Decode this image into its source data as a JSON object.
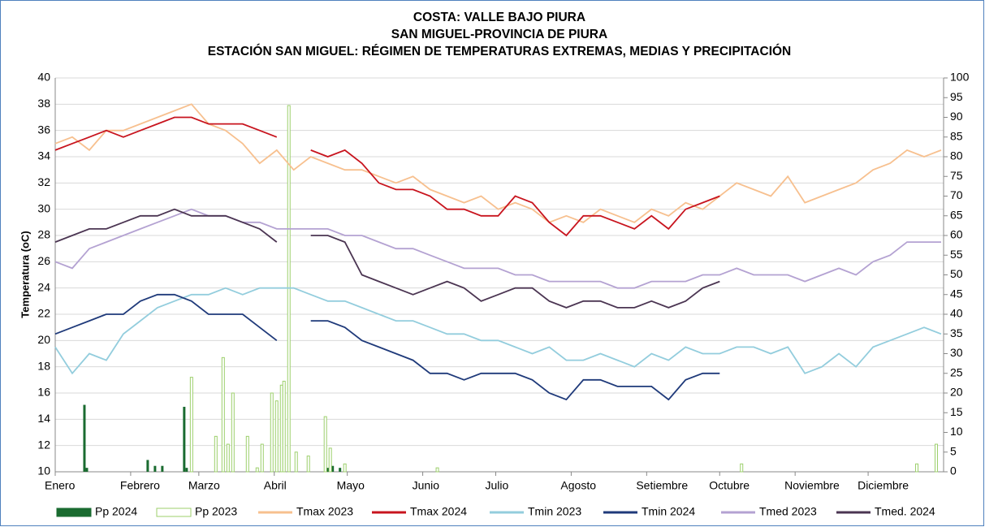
{
  "chart_data": {
    "type": "line",
    "title": [
      "COSTA: VALLE BAJO PIURA",
      "SAN MIGUEL-PROVINCIA DE PIURA",
      "ESTACIÓN SAN MIGUEL: RÉGIMEN DE TEMPERATURAS EXTREMAS, MEDIAS Y PRECIPITACIÓN"
    ],
    "y_label": "Temperatura (oC)",
    "x": [
      1,
      8,
      15,
      22,
      29,
      36,
      43,
      50,
      57,
      64,
      71,
      78,
      85,
      92,
      99,
      106,
      113,
      120,
      127,
      134,
      141,
      148,
      155,
      162,
      169,
      176,
      183,
      190,
      197,
      204,
      211,
      218,
      225,
      232,
      239,
      246,
      253,
      260,
      267,
      274,
      281,
      288,
      295,
      302,
      309,
      316,
      323,
      330,
      337,
      344,
      351,
      358,
      365
    ],
    "xlim": [
      1,
      366
    ],
    "xticks": [
      {
        "value": 1,
        "label": "Enero"
      },
      {
        "value": 32,
        "label": "Febrero"
      },
      {
        "value": 60,
        "label": "Marzo"
      },
      {
        "value": 91,
        "label": "Abril"
      },
      {
        "value": 121,
        "label": "Mayo"
      },
      {
        "value": 152,
        "label": "Junio"
      },
      {
        "value": 182,
        "label": "Julio"
      },
      {
        "value": 213,
        "label": "Agosto"
      },
      {
        "value": 244,
        "label": "Setiembre"
      },
      {
        "value": 274,
        "label": "Octubre"
      },
      {
        "value": 305,
        "label": "Noviembre"
      },
      {
        "value": 335,
        "label": "Diciembre"
      }
    ],
    "ylim": [
      10,
      40
    ],
    "yticks": [
      10,
      12,
      14,
      16,
      18,
      20,
      22,
      24,
      26,
      28,
      30,
      32,
      34,
      36,
      38,
      40
    ],
    "y2lim": [
      0,
      100
    ],
    "y2ticks": [
      0,
      5,
      10,
      15,
      20,
      25,
      30,
      35,
      40,
      45,
      50,
      55,
      60,
      65,
      70,
      75,
      80,
      85,
      90,
      95,
      100
    ],
    "grid": true,
    "legend": "bottom",
    "series": [
      {
        "name": "Pp 2024",
        "type": "bar",
        "axis": "y2",
        "color": "#1a6b30",
        "x": [
          13,
          14,
          39,
          42,
          45,
          54,
          55,
          113,
          115,
          118
        ],
        "values": [
          17,
          1,
          3,
          1.5,
          1.5,
          16.5,
          1,
          1,
          1.5,
          1
        ]
      },
      {
        "name": "Pp 2023",
        "type": "bar",
        "axis": "y2",
        "color": "#9ccf6b",
        "x": [
          57,
          67,
          70,
          72,
          74,
          80,
          84,
          86,
          90,
          92,
          94,
          95,
          97,
          100,
          105,
          112,
          114,
          120,
          158,
          283,
          355,
          363
        ],
        "values": [
          24,
          9,
          29,
          7,
          20,
          9,
          1,
          7,
          20,
          18,
          22,
          23,
          93,
          5,
          4,
          14,
          6,
          2,
          1,
          2,
          2,
          7
        ]
      },
      {
        "name": "Tmax 2023",
        "type": "line",
        "color": "#f7c08f",
        "values": [
          35,
          35.5,
          34.5,
          36,
          36,
          36.5,
          37,
          37.5,
          38,
          36.5,
          36,
          35,
          33.5,
          34.5,
          33,
          34,
          33.5,
          33,
          33,
          32.5,
          32,
          32.5,
          31.5,
          31,
          30.5,
          31,
          30,
          30.5,
          30,
          29,
          29.5,
          29,
          30,
          29.5,
          29,
          30,
          29.5,
          30.5,
          30,
          31,
          32,
          31.5,
          31,
          32.5,
          30.5,
          31,
          31.5,
          32,
          33,
          33.5,
          34.5,
          34,
          34.5
        ]
      },
      {
        "name": "Tmax 2024",
        "type": "line",
        "color": "#c8141e",
        "values": [
          34.5,
          35,
          35.5,
          36,
          35.5,
          36,
          36.5,
          37,
          37,
          36.5,
          36.5,
          36.5,
          36,
          35.5,
          null,
          34.5,
          34,
          34.5,
          33.5,
          32,
          31.5,
          31.5,
          31,
          30,
          30,
          29.5,
          29.5,
          31,
          30.5,
          29,
          28,
          29.5,
          29.5,
          29,
          28.5,
          29.5,
          28.5,
          30,
          30.5,
          31,
          null,
          null,
          null,
          null,
          null,
          null,
          null,
          null,
          null,
          null,
          null,
          null,
          null
        ]
      },
      {
        "name": "Tmin 2023",
        "type": "line",
        "color": "#93cddd",
        "values": [
          19.5,
          17.5,
          19,
          18.5,
          20.5,
          21.5,
          22.5,
          23,
          23.5,
          23.5,
          24,
          23.5,
          24,
          24,
          24,
          23.5,
          23,
          23,
          22.5,
          22,
          21.5,
          21.5,
          21,
          20.5,
          20.5,
          20,
          20,
          19.5,
          19,
          19.5,
          18.5,
          18.5,
          19,
          18.5,
          18,
          19,
          18.5,
          19.5,
          19,
          19,
          19.5,
          19.5,
          19,
          19.5,
          17.5,
          18,
          19,
          18,
          19.5,
          20,
          20.5,
          21,
          20.5
        ]
      },
      {
        "name": "Tmin 2024",
        "type": "line",
        "color": "#1f3a7a",
        "values": [
          20.5,
          21,
          21.5,
          22,
          22,
          23,
          23.5,
          23.5,
          23,
          22,
          22,
          22,
          21,
          20,
          null,
          21.5,
          21.5,
          21,
          20,
          19.5,
          19,
          18.5,
          17.5,
          17.5,
          17,
          17.5,
          17.5,
          17.5,
          17,
          16,
          15.5,
          17,
          17,
          16.5,
          16.5,
          16.5,
          15.5,
          17,
          17.5,
          17.5,
          null,
          null,
          null,
          null,
          null,
          null,
          null,
          null,
          null,
          null,
          null,
          null,
          null
        ]
      },
      {
        "name": "Tmed 2023",
        "type": "line",
        "color": "#b4a2d2",
        "values": [
          26,
          25.5,
          27,
          27.5,
          28,
          28.5,
          29,
          29.5,
          30,
          29.5,
          29.5,
          29,
          29,
          28.5,
          28.5,
          28.5,
          28.5,
          28,
          28,
          27.5,
          27,
          27,
          26.5,
          26,
          25.5,
          25.5,
          25.5,
          25,
          25,
          24.5,
          24.5,
          24.5,
          24.5,
          24,
          24,
          24.5,
          24.5,
          24.5,
          25,
          25,
          25.5,
          25,
          25,
          25,
          24.5,
          25,
          25.5,
          25,
          26,
          26.5,
          27.5,
          27.5,
          27.5
        ]
      },
      {
        "name": "Tmed. 2024",
        "type": "line",
        "color": "#4b3552",
        "values": [
          27.5,
          28,
          28.5,
          28.5,
          29,
          29.5,
          29.5,
          30,
          29.5,
          29.5,
          29.5,
          29,
          28.5,
          27.5,
          null,
          28,
          28,
          27.5,
          25,
          24.5,
          24,
          23.5,
          24,
          24.5,
          24,
          23,
          23.5,
          24,
          24,
          23,
          22.5,
          23,
          23,
          22.5,
          22.5,
          23,
          22.5,
          23,
          24,
          24.5,
          null,
          null,
          null,
          null,
          null,
          null,
          null,
          null,
          null,
          null,
          null,
          null,
          null
        ]
      }
    ]
  }
}
